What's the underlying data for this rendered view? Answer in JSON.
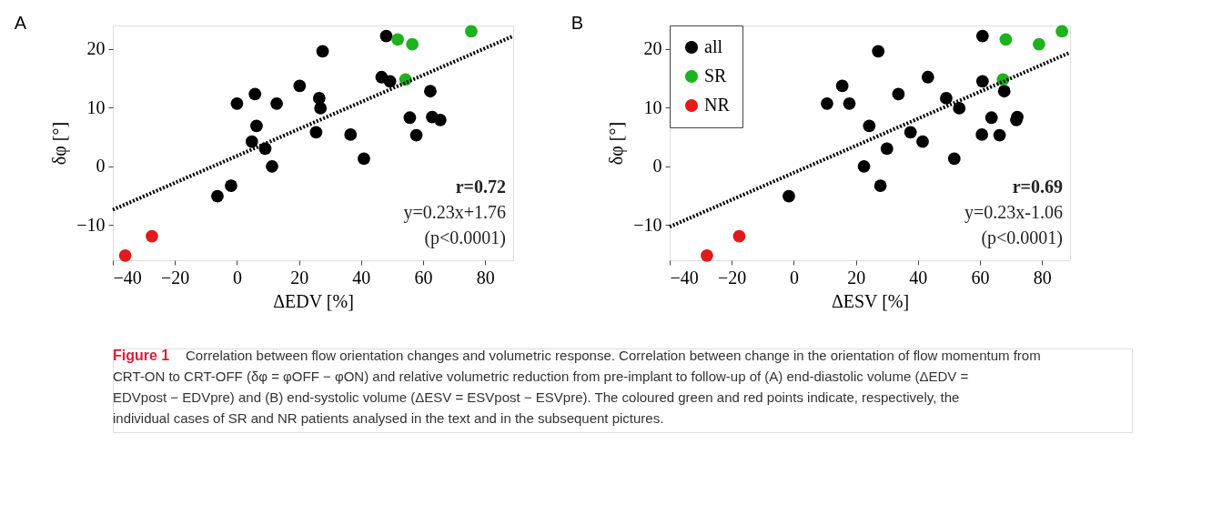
{
  "chart_data": [
    {
      "type": "scatter",
      "title": "A",
      "xlabel": "ΔEDV [%]",
      "ylabel": "δφ [°]",
      "xlim": [
        -40,
        89
      ],
      "ylim": [
        -16,
        24
      ],
      "xticks": [
        -40,
        -20,
        0,
        20,
        40,
        60,
        80
      ],
      "yticks": [
        -10,
        0,
        10,
        20
      ],
      "grid": false,
      "legend": false,
      "marker": "circle",
      "series": [
        {
          "color": "#000000",
          "x": [
            48.1,
            27.6,
            46.6,
            49.3,
            20.2,
            5.8,
            62.3,
            0,
            12.8,
            26.5,
            26.9,
            6.3,
            55.7,
            62.9,
            65.5,
            25.5,
            36.6,
            57.8,
            4.8,
            9.1,
            40.9,
            11.3,
            -1.9,
            -6.3
          ],
          "values": [
            22.2,
            19.6,
            15.2,
            14.5,
            13.7,
            12.3,
            12.8,
            10.7,
            10.7,
            11.6,
            9.9,
            6.9,
            8.3,
            8.4,
            7.9,
            5.8,
            5.4,
            5.3,
            4.2,
            3.0,
            1.3,
            0.0,
            -3.3,
            -5.1
          ]
        },
        {
          "color": "#1fb21f",
          "x": [
            51.8,
            56.5,
            75.5,
            54.3
          ],
          "values": [
            21.6,
            20.8,
            23.0,
            14.8
          ]
        },
        {
          "color": "#e21a1a",
          "x": [
            -36,
            -27.4
          ],
          "values": [
            -15.2,
            -11.9
          ]
        },
        {
          "type": "line",
          "color": "#000000",
          "line_style": "dotted",
          "marker": "none",
          "x": [
            -40,
            89
          ],
          "values": [
            -7.4,
            22.2
          ]
        }
      ],
      "annotations": [
        "r=0.72",
        "y=0.23x+1.76",
        "(p<0.0001)"
      ]
    },
    {
      "type": "scatter",
      "title": "B",
      "xlabel": "ΔESV [%]",
      "ylabel": "δφ [°]",
      "xlim": [
        -40,
        89
      ],
      "ylim": [
        -16,
        24
      ],
      "xticks": [
        -40,
        -20,
        0,
        20,
        40,
        60,
        80
      ],
      "yticks": [
        -10,
        0,
        10,
        20
      ],
      "grid": false,
      "legend": "top left",
      "marker": "circle",
      "series": [
        {
          "name": "all",
          "color": "#000000",
          "x": [
            60.8,
            27.2,
            43.2,
            60.8,
            15.6,
            33.7,
            67.8,
            10.7,
            17.9,
            49.1,
            53.3,
            24.3,
            63.7,
            72.0,
            71.7,
            37.6,
            60.6,
            66.3,
            41.5,
            30.0,
            51.7,
            22.6,
            27.9,
            -1.6
          ],
          "values": [
            22.2,
            19.6,
            15.2,
            14.5,
            13.7,
            12.3,
            12.8,
            10.7,
            10.7,
            11.6,
            9.9,
            6.9,
            8.3,
            8.4,
            7.9,
            5.8,
            5.4,
            5.3,
            4.2,
            3.0,
            1.3,
            0.0,
            -3.3,
            -5.1
          ]
        },
        {
          "name": "SR",
          "color": "#1fb21f",
          "x": [
            68.3,
            79.0,
            86.4,
            67.4
          ],
          "values": [
            21.6,
            20.8,
            23.0,
            14.8
          ]
        },
        {
          "name": "NR",
          "color": "#e21a1a",
          "x": [
            -28.0,
            -17.6
          ],
          "values": [
            -15.2,
            -11.9
          ]
        },
        {
          "type": "line",
          "color": "#000000",
          "line_style": "dotted",
          "marker": "none",
          "x": [
            -40,
            89
          ],
          "values": [
            -10.3,
            19.4
          ]
        }
      ],
      "annotations": [
        "r=0.69",
        "y=0.23x-1.06",
        "(p<0.0001)",
        "Figure 1",
        "Correlation between flow orientation changes and volumetric response. Correlation between change in the orientation of flow momentum from CRT-ON to CRT-OFF (δφ = φOFF − φON) and relative volumetric reduction from pre-implant to follow-up of (A) end-diastolic volume (ΔEDV = EDVpost − EDVpre) and (B) end-systolic volume (ΔESV = ESVpost − ESVpre). The coloured green and red points indicate, respectively, the individual cases of SR and NR patients analysed in the text and in the subsequent pictures."
      ]
    }
  ]
}
